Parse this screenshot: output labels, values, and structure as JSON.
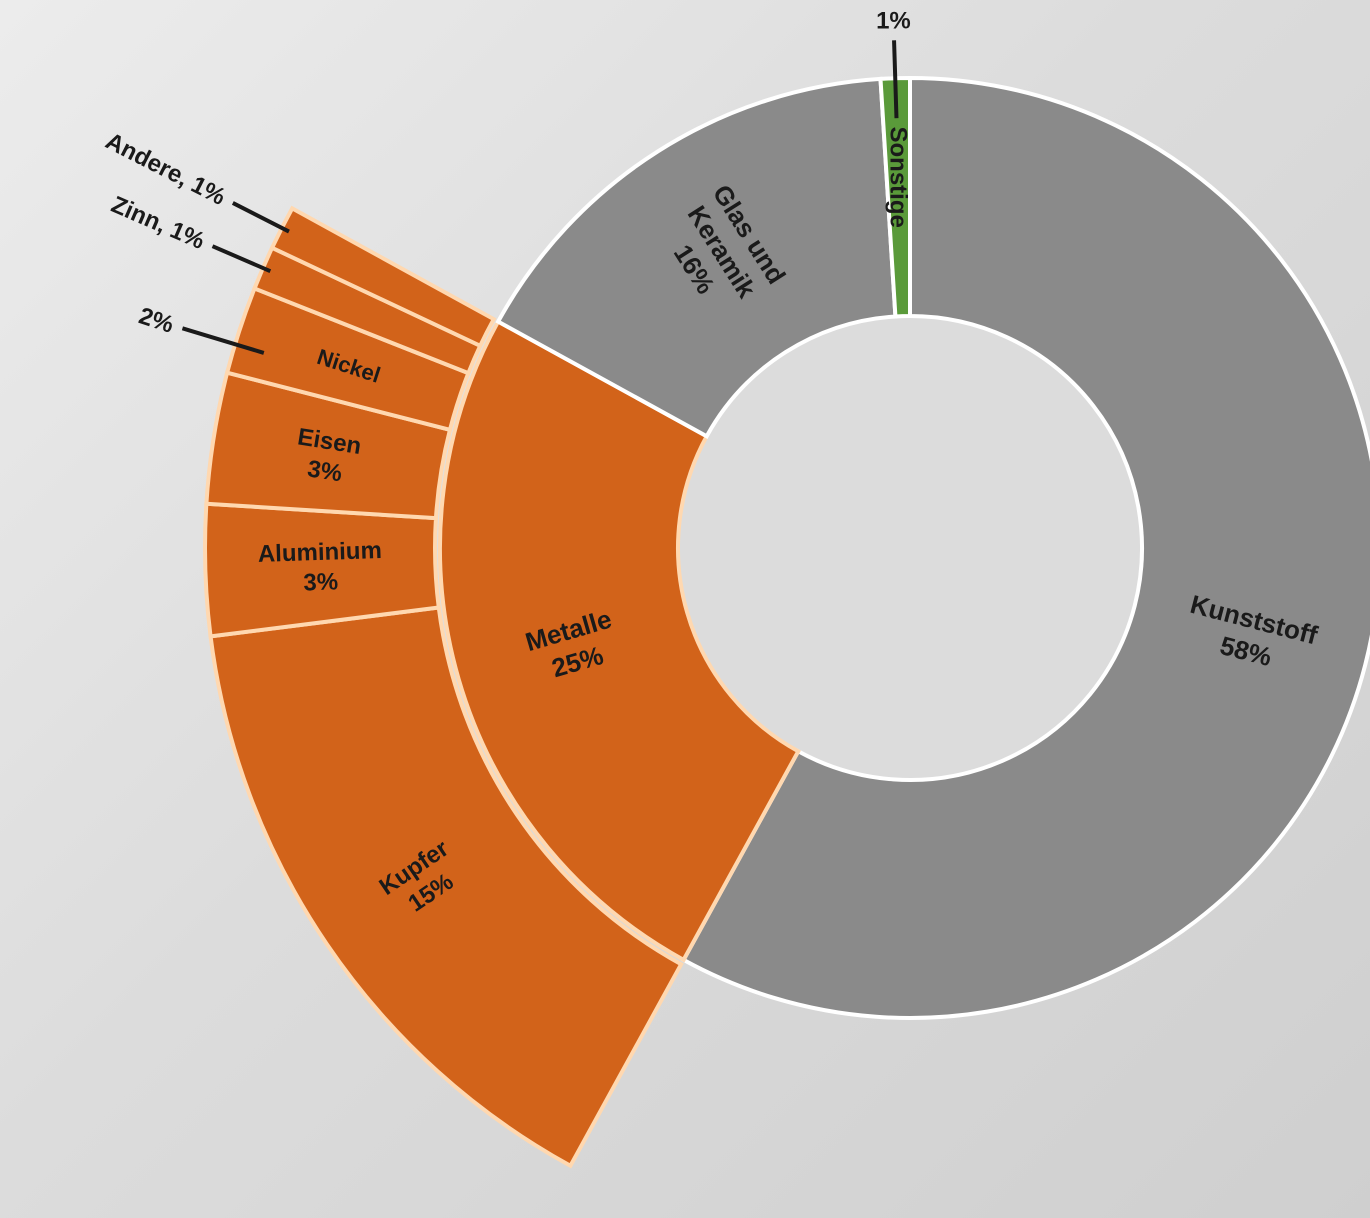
{
  "chart_data": {
    "type": "sunburst",
    "title": "",
    "colors": {
      "gray": "#8a8a8a",
      "green": "#5a9a3a",
      "orange": "#d2631a",
      "border_main": "#ffffff",
      "border_metal": "#ffd8b0",
      "center": "#dcdcdc"
    },
    "inner_ring": [
      {
        "name": "Kunststoff",
        "value": 58,
        "label": "Kunststoff",
        "percent": "58%",
        "color": "gray"
      },
      {
        "name": "Metalle",
        "value": 25,
        "label": "Metalle",
        "percent": "25%",
        "color": "orange"
      },
      {
        "name": "Glas und Keramik",
        "value": 16,
        "label_lines": [
          "Glas und",
          "Keramik"
        ],
        "percent": "16%",
        "color": "gray"
      },
      {
        "name": "Sonstige",
        "value": 1,
        "label": "Sonstige",
        "percent": "1%",
        "color": "green"
      }
    ],
    "metal_breakdown": [
      {
        "name": "Kupfer",
        "value": 15,
        "label": "Kupfer",
        "percent": "15%"
      },
      {
        "name": "Aluminium",
        "value": 3,
        "label": "Aluminium",
        "percent": "3%"
      },
      {
        "name": "Eisen",
        "value": 3,
        "label": "Eisen",
        "percent": "3%"
      },
      {
        "name": "Nickel",
        "value": 2,
        "label": "Nickel",
        "percent": "2%"
      },
      {
        "name": "Zinn",
        "value": 1,
        "label": "Zinn, 1%"
      },
      {
        "name": "Andere",
        "value": 1,
        "label": "Andere, 1%"
      }
    ]
  }
}
